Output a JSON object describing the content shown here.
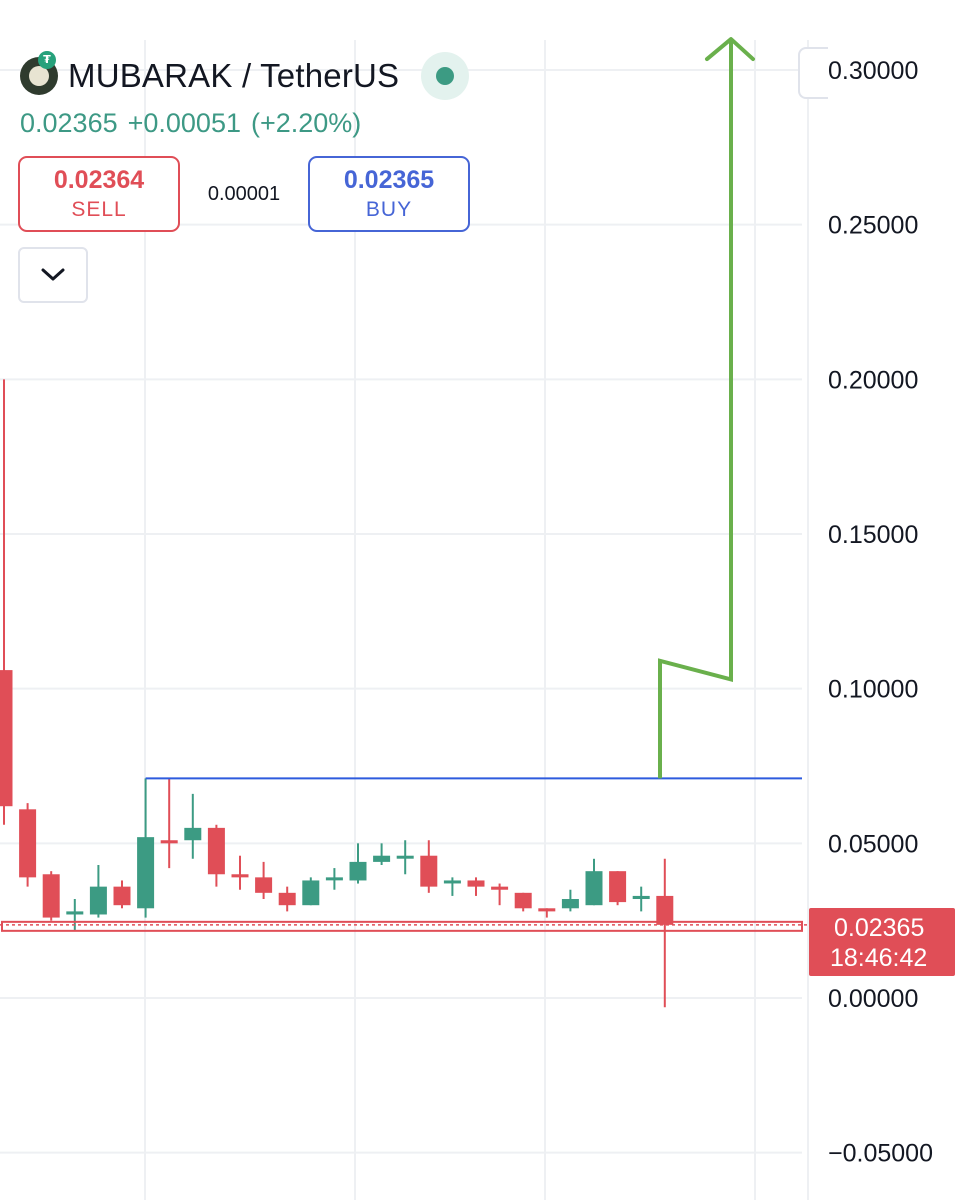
{
  "header": {
    "symbol": "MUBARAK / TetherUS",
    "last_price": "0.02365",
    "change": "+0.00051",
    "change_pct": "(+2.20%)",
    "status": "market-open",
    "logo_icon": "mubarak-coin-icon",
    "quote_icon": "tether-icon"
  },
  "trade": {
    "sell_price": "0.02364",
    "sell_label": "SELL",
    "spread": "0.00001",
    "buy_price": "0.02365",
    "buy_label": "BUY"
  },
  "colors": {
    "up": "#3c9b83",
    "down": "#e04e57",
    "arrow": "#6ab04c",
    "resistance": "#2e5bde",
    "quote_text": "#3d9985"
  },
  "price_tag": {
    "price": "0.02365",
    "countdown": "18:46:42"
  },
  "chart_data": {
    "type": "candlestick",
    "y_axis": {
      "range": [
        -0.06,
        0.31
      ],
      "ticks": [
        0.3,
        0.25,
        0.2,
        0.15,
        0.1,
        0.05,
        0.0,
        -0.05
      ],
      "tick_labels": [
        "0.30000",
        "0.25000",
        "0.20000",
        "0.15000",
        "0.10000",
        "0.05000",
        "0.00000",
        "−0.05000"
      ]
    },
    "x_axis": {
      "labels_visible": false,
      "candle_count": 29
    },
    "grid": true,
    "candles": [
      {
        "o": 0.106,
        "h": 0.2,
        "l": 0.056,
        "c": 0.062
      },
      {
        "o": 0.061,
        "h": 0.063,
        "l": 0.036,
        "c": 0.039
      },
      {
        "o": 0.04,
        "h": 0.041,
        "l": 0.025,
        "c": 0.026
      },
      {
        "o": 0.027,
        "h": 0.032,
        "l": 0.022,
        "c": 0.028
      },
      {
        "o": 0.027,
        "h": 0.043,
        "l": 0.026,
        "c": 0.036
      },
      {
        "o": 0.036,
        "h": 0.038,
        "l": 0.029,
        "c": 0.03
      },
      {
        "o": 0.029,
        "h": 0.071,
        "l": 0.026,
        "c": 0.052
      },
      {
        "o": 0.051,
        "h": 0.071,
        "l": 0.042,
        "c": 0.05
      },
      {
        "o": 0.051,
        "h": 0.066,
        "l": 0.045,
        "c": 0.055
      },
      {
        "o": 0.055,
        "h": 0.056,
        "l": 0.036,
        "c": 0.04
      },
      {
        "o": 0.04,
        "h": 0.046,
        "l": 0.035,
        "c": 0.039
      },
      {
        "o": 0.039,
        "h": 0.044,
        "l": 0.032,
        "c": 0.034
      },
      {
        "o": 0.034,
        "h": 0.036,
        "l": 0.028,
        "c": 0.03
      },
      {
        "o": 0.03,
        "h": 0.039,
        "l": 0.03,
        "c": 0.038
      },
      {
        "o": 0.039,
        "h": 0.042,
        "l": 0.035,
        "c": 0.039
      },
      {
        "o": 0.038,
        "h": 0.05,
        "l": 0.037,
        "c": 0.044
      },
      {
        "o": 0.044,
        "h": 0.05,
        "l": 0.043,
        "c": 0.046
      },
      {
        "o": 0.046,
        "h": 0.051,
        "l": 0.04,
        "c": 0.046
      },
      {
        "o": 0.046,
        "h": 0.051,
        "l": 0.034,
        "c": 0.036
      },
      {
        "o": 0.038,
        "h": 0.039,
        "l": 0.033,
        "c": 0.038
      },
      {
        "o": 0.038,
        "h": 0.039,
        "l": 0.033,
        "c": 0.036
      },
      {
        "o": 0.036,
        "h": 0.037,
        "l": 0.03,
        "c": 0.035
      },
      {
        "o": 0.034,
        "h": 0.034,
        "l": 0.028,
        "c": 0.029
      },
      {
        "o": 0.029,
        "h": 0.029,
        "l": 0.026,
        "c": 0.028
      },
      {
        "o": 0.029,
        "h": 0.035,
        "l": 0.028,
        "c": 0.032
      },
      {
        "o": 0.03,
        "h": 0.045,
        "l": 0.03,
        "c": 0.041
      },
      {
        "o": 0.041,
        "h": 0.041,
        "l": 0.03,
        "c": 0.031
      },
      {
        "o": 0.032,
        "h": 0.036,
        "l": 0.028,
        "c": 0.033
      },
      {
        "o": 0.033,
        "h": 0.045,
        "l": -0.003,
        "c": 0.02365
      }
    ],
    "resistance_level": 0.071,
    "current_price_level": 0.02365,
    "annotation_arrow": {
      "label": "",
      "points_value": [
        0.071,
        0.109,
        0.103,
        0.31
      ]
    }
  }
}
